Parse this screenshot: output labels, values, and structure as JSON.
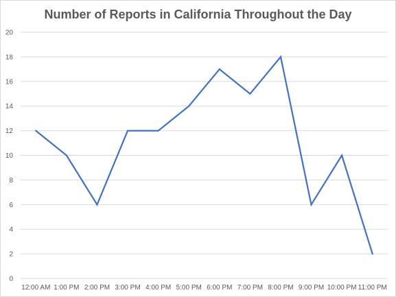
{
  "chart_data": {
    "type": "line",
    "title": "Number of Reports in California Throughout the Day",
    "xlabel": "",
    "ylabel": "",
    "categories": [
      "12:00 AM",
      "1:00 PM",
      "2:00 PM",
      "3:00 PM",
      "4:00 PM",
      "5:00 PM",
      "6:00 PM",
      "7:00 PM",
      "8:00 PM",
      "9:00 PM",
      "10:00 PM",
      "11:00 PM"
    ],
    "series": [
      {
        "values": [
          12,
          10,
          6,
          12,
          12,
          14,
          17,
          15,
          18,
          6,
          10,
          2
        ],
        "color": "#4472c4"
      }
    ],
    "ylim": [
      0,
      20
    ],
    "yticks": [
      0,
      2,
      4,
      6,
      8,
      10,
      12,
      14,
      16,
      18,
      20
    ],
    "grid": true,
    "legend": "none",
    "gridline_color": "#d9d9d9"
  }
}
